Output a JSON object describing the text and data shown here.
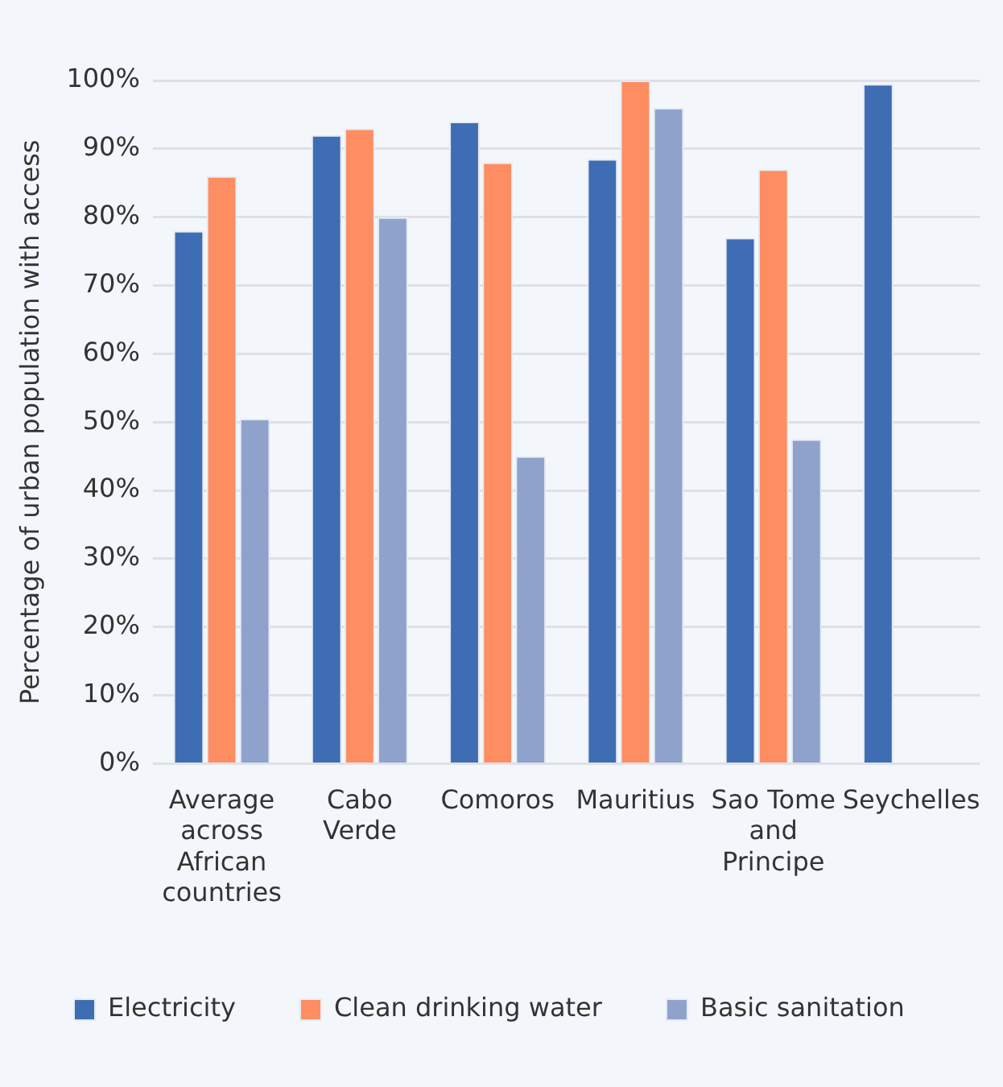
{
  "chart_data": {
    "type": "bar",
    "ylabel": "Percentage of urban population with access",
    "categories": [
      "Average across African countries",
      "Cabo Verde",
      "Comoros",
      "Mauritius",
      "Sao Tome and Principe",
      "Seychelles"
    ],
    "series": [
      {
        "name": "Electricity",
        "color": "#3e6db3",
        "values": [
          78,
          92,
          94,
          88.5,
          77,
          99.5
        ]
      },
      {
        "name": "Clean drinking water",
        "color": "#fe8d61",
        "values": [
          86,
          93,
          88,
          100,
          87,
          null
        ]
      },
      {
        "name": "Basic sanitation",
        "color": "#8fa2cc",
        "values": [
          50.5,
          80,
          45,
          96,
          47.5,
          null
        ]
      }
    ],
    "ylim": [
      0,
      100
    ],
    "yticks": [
      {
        "value": 0,
        "label": "0%"
      },
      {
        "value": 10,
        "label": "10%"
      },
      {
        "value": 20,
        "label": "20%"
      },
      {
        "value": 30,
        "label": "30%"
      },
      {
        "value": 40,
        "label": "40%"
      },
      {
        "value": 50,
        "label": "50%"
      },
      {
        "value": 60,
        "label": "60%"
      },
      {
        "value": 70,
        "label": "70%"
      },
      {
        "value": 80,
        "label": "80%"
      },
      {
        "value": 90,
        "label": "90%"
      },
      {
        "value": 100,
        "label": "100%"
      }
    ],
    "grid": "y",
    "legend": "bottom"
  }
}
